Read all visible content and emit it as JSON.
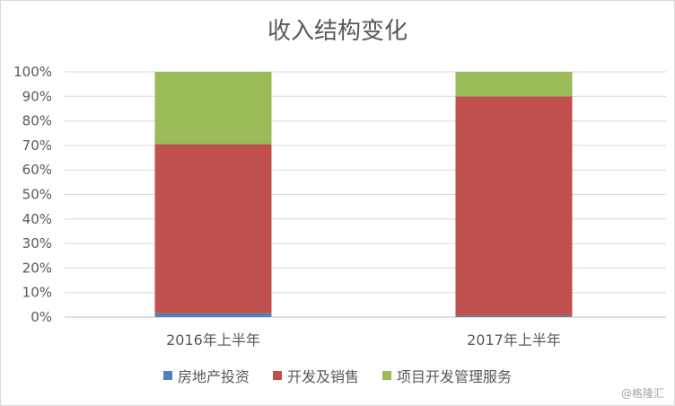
{
  "chart_data": {
    "type": "bar",
    "stacked": true,
    "title": "收入结构变化",
    "categories": [
      "2016年上半年",
      "2017年上半年"
    ],
    "ylim": [
      0,
      100
    ],
    "yticks": [
      "0%",
      "10%",
      "20%",
      "30%",
      "40%",
      "50%",
      "60%",
      "70%",
      "80%",
      "90%",
      "100%"
    ],
    "grid": true,
    "legend_position": "bottom",
    "series": [
      {
        "name": "房地产投资",
        "color": "#4f81bd",
        "values": [
          1.5,
          0.5
        ]
      },
      {
        "name": "开发及销售",
        "color": "#c0504d",
        "values": [
          69,
          89.5
        ]
      },
      {
        "name": "项目开发管理服务",
        "color": "#9bbb59",
        "values": [
          29.5,
          10
        ]
      }
    ]
  },
  "watermark": "@格隆汇"
}
